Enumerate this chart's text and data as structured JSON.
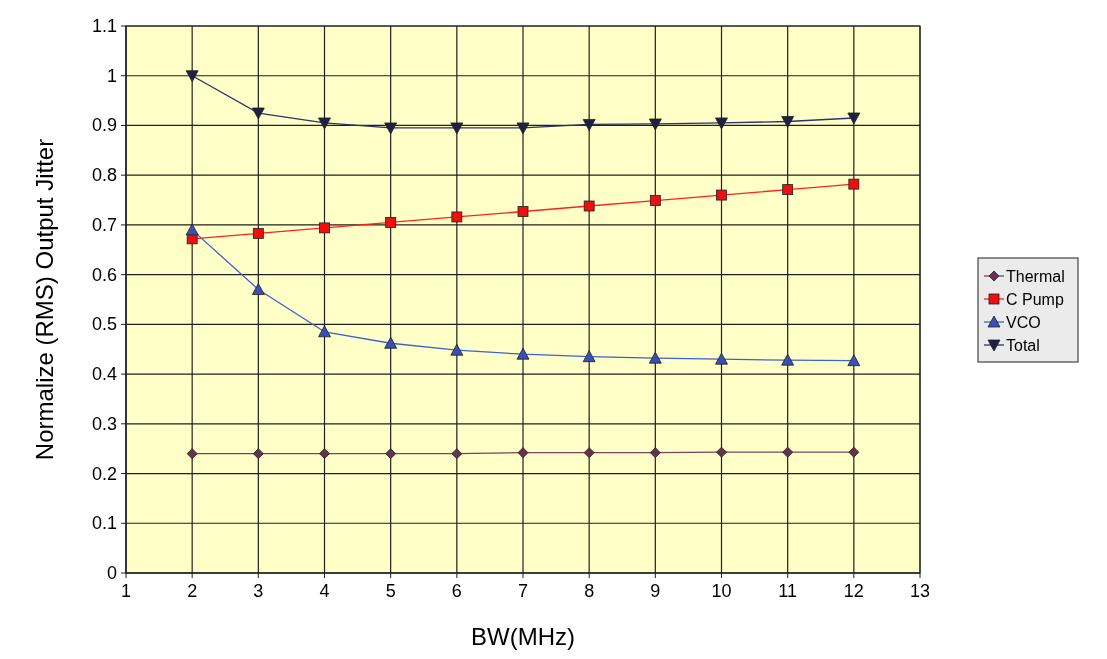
{
  "chart_data": {
    "type": "line",
    "xlabel": "BW(MHz)",
    "ylabel": "Normalize (RMS) Output Jitter",
    "x": [
      2,
      3,
      4,
      5,
      6,
      7,
      8,
      9,
      10,
      11,
      12
    ],
    "xlim": [
      1,
      13
    ],
    "xticks": [
      1,
      2,
      3,
      4,
      5,
      6,
      7,
      8,
      9,
      10,
      11,
      12,
      13
    ],
    "ylim": [
      0,
      1.1
    ],
    "yticks": [
      0,
      0.1,
      0.2,
      0.3,
      0.4,
      0.5,
      0.6,
      0.7,
      0.8,
      0.9,
      1,
      1.1
    ],
    "grid": true,
    "legend": "right",
    "series": [
      {
        "name": "Thermal",
        "color": "#804060",
        "marker": "diamond",
        "values": [
          0.24,
          0.24,
          0.24,
          0.24,
          0.24,
          0.242,
          0.242,
          0.242,
          0.243,
          0.243,
          0.243
        ]
      },
      {
        "name": "C Pump",
        "color": "#ff2020",
        "marker": "square",
        "values": [
          0.672,
          0.683,
          0.694,
          0.705,
          0.716,
          0.727,
          0.738,
          0.749,
          0.76,
          0.771,
          0.782
        ]
      },
      {
        "name": "VCO",
        "color": "#4060d0",
        "marker": "triangle",
        "values": [
          0.69,
          0.57,
          0.485,
          0.462,
          0.448,
          0.44,
          0.435,
          0.432,
          0.43,
          0.428,
          0.427
        ]
      },
      {
        "name": "Total",
        "color": "#303070",
        "marker": "triangle-down",
        "values": [
          1.0,
          0.925,
          0.905,
          0.895,
          0.895,
          0.895,
          0.902,
          0.903,
          0.905,
          0.908,
          0.915
        ]
      }
    ]
  }
}
